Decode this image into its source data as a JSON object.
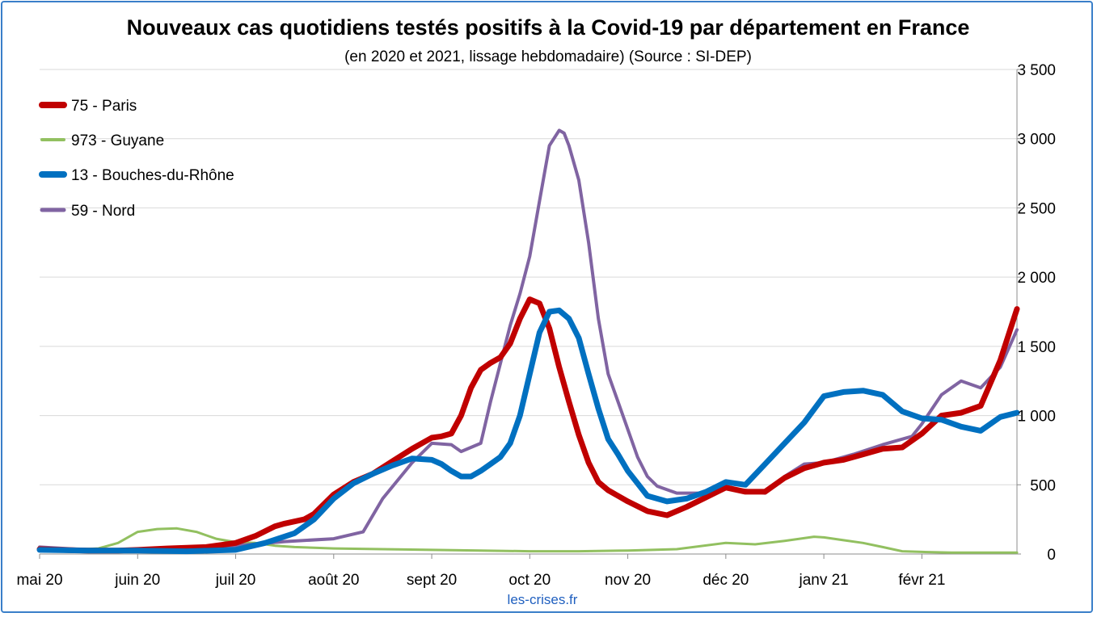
{
  "chart_data": {
    "type": "line",
    "title": "Nouveaux cas quotidiens testés positifs à la Covid-19 par département en France",
    "subtitle": "(en 2020 et 2021, lissage hebdomadaire) (Source : SI-DEP)",
    "source_label": "les-crises.fr",
    "x_tick_labels": [
      "mai 20",
      "juin 20",
      "juil 20",
      "août 20",
      "sept 20",
      "oct 20",
      "nov 20",
      "déc 20",
      "janv 21",
      "févr 21"
    ],
    "x_tick_months": [
      0,
      1,
      2,
      3,
      4,
      5,
      6,
      7,
      8,
      9
    ],
    "xlim": [
      0,
      9.97
    ],
    "y_tick_labels": [
      "0",
      "500",
      "1 000",
      "1 500",
      "2 000",
      "2 500",
      "3 000",
      "3 500"
    ],
    "y_tick_values": [
      0,
      500,
      1000,
      1500,
      2000,
      2500,
      3000,
      3500
    ],
    "ylim": [
      0,
      3500
    ],
    "y_axis_side": "right",
    "grid": "horizontal",
    "legend_position": "top-left",
    "series": [
      {
        "name": "75 - Paris",
        "color": "#c00000",
        "width": 7,
        "x": [
          0,
          0.2,
          0.5,
          0.8,
          1.0,
          1.3,
          1.7,
          2.0,
          2.2,
          2.4,
          2.5,
          2.7,
          2.8,
          3.0,
          3.2,
          3.4,
          3.6,
          3.8,
          4.0,
          4.1,
          4.2,
          4.3,
          4.4,
          4.5,
          4.6,
          4.7,
          4.8,
          4.9,
          5.0,
          5.1,
          5.2,
          5.3,
          5.4,
          5.5,
          5.6,
          5.7,
          5.8,
          5.9,
          6.0,
          6.2,
          6.4,
          6.6,
          6.8,
          7.0,
          7.2,
          7.4,
          7.6,
          7.8,
          8.0,
          8.2,
          8.4,
          8.6,
          8.8,
          9.0,
          9.2,
          9.4,
          9.6,
          9.8,
          9.97
        ],
        "y": [
          35,
          30,
          25,
          25,
          30,
          40,
          50,
          80,
          130,
          200,
          220,
          250,
          290,
          430,
          520,
          580,
          670,
          760,
          840,
          850,
          870,
          1000,
          1200,
          1330,
          1380,
          1420,
          1520,
          1700,
          1840,
          1810,
          1630,
          1350,
          1100,
          860,
          660,
          520,
          460,
          420,
          380,
          310,
          280,
          340,
          410,
          480,
          450,
          450,
          550,
          620,
          660,
          680,
          720,
          760,
          770,
          870,
          1000,
          1020,
          1070,
          1400,
          1770
        ]
      },
      {
        "name": "973 - Guyane",
        "color": "#92c060",
        "width": 3,
        "x": [
          0,
          0.3,
          0.6,
          0.8,
          1.0,
          1.2,
          1.4,
          1.6,
          1.8,
          2.0,
          2.2,
          2.4,
          2.6,
          2.8,
          3.0,
          3.5,
          4.0,
          4.5,
          5.0,
          5.5,
          6.0,
          6.5,
          7.0,
          7.3,
          7.6,
          7.9,
          8.0,
          8.2,
          8.4,
          8.6,
          8.8,
          9.0,
          9.3,
          9.6,
          9.97
        ],
        "y": [
          35,
          30,
          40,
          80,
          160,
          180,
          185,
          160,
          110,
          85,
          80,
          60,
          50,
          45,
          40,
          35,
          30,
          25,
          20,
          20,
          25,
          35,
          80,
          70,
          95,
          125,
          120,
          100,
          80,
          50,
          20,
          15,
          10,
          10,
          10
        ]
      },
      {
        "name": "13 - Bouches-du-Rhône",
        "color": "#0070c0",
        "width": 7,
        "x": [
          0,
          0.5,
          1.0,
          1.5,
          2.0,
          2.3,
          2.6,
          2.8,
          3.0,
          3.2,
          3.4,
          3.6,
          3.8,
          4.0,
          4.1,
          4.2,
          4.3,
          4.4,
          4.5,
          4.6,
          4.7,
          4.8,
          4.9,
          5.0,
          5.1,
          5.2,
          5.3,
          5.4,
          5.5,
          5.6,
          5.7,
          5.8,
          5.9,
          6.0,
          6.2,
          6.4,
          6.6,
          6.8,
          7.0,
          7.2,
          7.4,
          7.6,
          7.8,
          8.0,
          8.2,
          8.4,
          8.6,
          8.8,
          9.0,
          9.2,
          9.4,
          9.6,
          9.8,
          9.97
        ],
        "y": [
          30,
          25,
          25,
          20,
          30,
          80,
          150,
          250,
          400,
          510,
          580,
          640,
          690,
          680,
          650,
          600,
          560,
          560,
          600,
          650,
          700,
          800,
          1000,
          1300,
          1600,
          1750,
          1760,
          1700,
          1560,
          1300,
          1050,
          830,
          720,
          600,
          420,
          380,
          400,
          450,
          520,
          500,
          650,
          800,
          950,
          1140,
          1170,
          1180,
          1150,
          1030,
          980,
          970,
          920,
          890,
          990,
          1020
        ]
      },
      {
        "name": "59 - Nord",
        "color": "#8064a2",
        "width": 4,
        "x": [
          0,
          0.5,
          1.0,
          1.5,
          2.0,
          2.5,
          3.0,
          3.3,
          3.5,
          3.8,
          4.0,
          4.2,
          4.3,
          4.5,
          4.6,
          4.8,
          4.9,
          5.0,
          5.1,
          5.2,
          5.3,
          5.35,
          5.4,
          5.5,
          5.6,
          5.7,
          5.8,
          5.9,
          6.0,
          6.1,
          6.2,
          6.3,
          6.5,
          6.8,
          7.0,
          7.2,
          7.4,
          7.6,
          7.8,
          8.0,
          8.3,
          8.6,
          8.9,
          9.0,
          9.2,
          9.4,
          9.6,
          9.8,
          9.97
        ],
        "y": [
          50,
          30,
          25,
          30,
          60,
          90,
          110,
          160,
          400,
          660,
          800,
          790,
          740,
          800,
          1100,
          1650,
          1880,
          2150,
          2550,
          2950,
          3060,
          3040,
          2950,
          2700,
          2250,
          1700,
          1300,
          1100,
          900,
          700,
          560,
          490,
          440,
          440,
          470,
          460,
          440,
          560,
          650,
          660,
          720,
          790,
          850,
          940,
          1150,
          1250,
          1200,
          1350,
          1620
        ]
      }
    ]
  }
}
